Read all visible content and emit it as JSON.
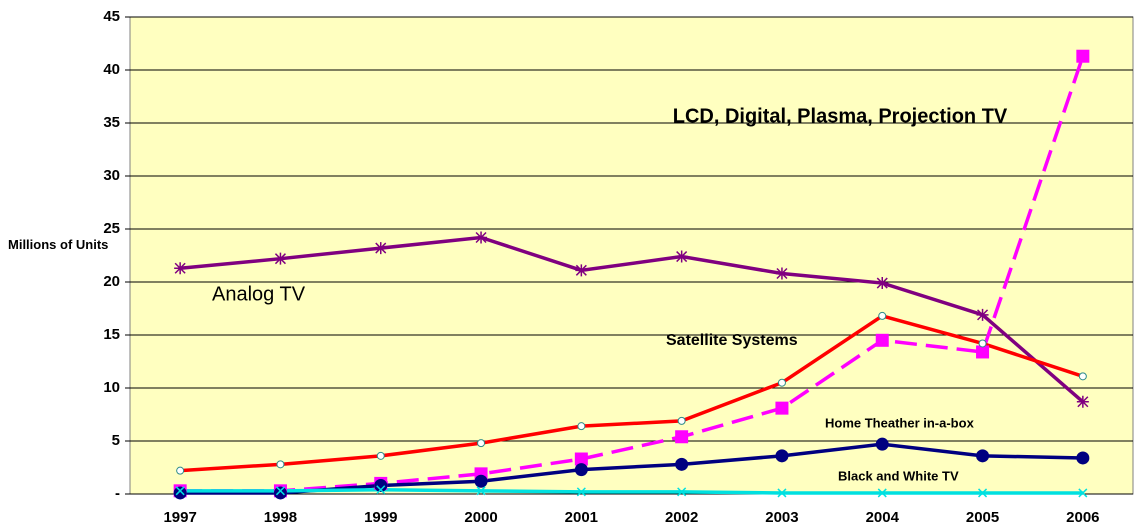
{
  "chart_data": {
    "type": "line",
    "y_label": "Millions of Units",
    "categories": [
      "1997",
      "1998",
      "1999",
      "2000",
      "2001",
      "2002",
      "2003",
      "2004",
      "2005",
      "2006"
    ],
    "series": [
      {
        "name": "Analog TV",
        "color": "#800080",
        "marker": "star",
        "dash": false,
        "values": [
          21.3,
          22.2,
          23.2,
          24.2,
          21.1,
          22.4,
          20.8,
          19.9,
          16.9,
          8.7
        ]
      },
      {
        "name": "LCD, Digital, Plasma, Projection TV",
        "color": "#ff00ff",
        "marker": "square",
        "dash": true,
        "values": [
          0.3,
          0.3,
          1.0,
          1.9,
          3.3,
          5.4,
          8.1,
          14.5,
          13.4,
          41.3
        ]
      },
      {
        "name": "Satellite Systems",
        "color": "#ff0000",
        "marker": "ring",
        "dash": false,
        "values": [
          2.2,
          2.8,
          3.6,
          4.8,
          6.4,
          6.9,
          10.5,
          16.8,
          14.2,
          11.1
        ]
      },
      {
        "name": "Home Theather in-a-box",
        "color": "#000080",
        "marker": "dot",
        "dash": false,
        "values": [
          0.1,
          0.1,
          0.8,
          1.2,
          2.3,
          2.8,
          3.6,
          4.7,
          3.6,
          3.4
        ]
      },
      {
        "name": "Black and White TV",
        "color": "#00e0e0",
        "marker": "cross",
        "dash": false,
        "values": [
          0.3,
          0.3,
          0.4,
          0.3,
          0.2,
          0.2,
          0.1,
          0.1,
          0.1,
          0.1
        ]
      }
    ],
    "ylim": [
      0,
      45
    ],
    "yticks": [
      {
        "value": 0,
        "label": "-"
      },
      5,
      10,
      15,
      20,
      25,
      30,
      35,
      40,
      45
    ],
    "grid": true,
    "plot_background": "#ffffc0"
  }
}
